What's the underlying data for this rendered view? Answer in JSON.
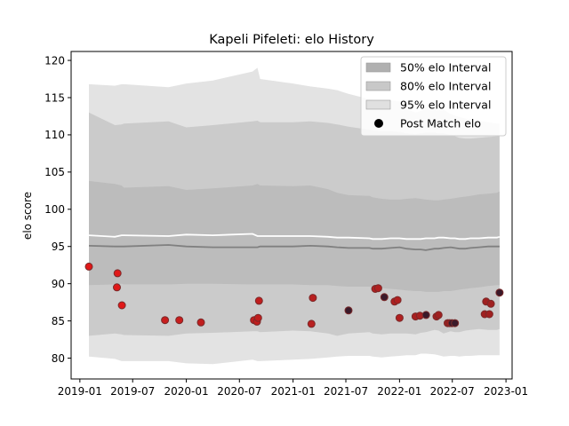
{
  "chart_data": {
    "type": "line",
    "title": "Kapeli Pifeleti: elo History",
    "xlabel": "",
    "ylabel": "elo score",
    "xlim": [
      "2018-12-02",
      "2023-01-22"
    ],
    "ylim": [
      77.2,
      121.2
    ],
    "x_ticks": [
      {
        "date": "2019-01-01",
        "label": "2019-01"
      },
      {
        "date": "2019-07-01",
        "label": "2019-07"
      },
      {
        "date": "2020-01-01",
        "label": "2020-01"
      },
      {
        "date": "2020-07-01",
        "label": "2020-07"
      },
      {
        "date": "2021-01-01",
        "label": "2021-01"
      },
      {
        "date": "2021-07-01",
        "label": "2021-07"
      },
      {
        "date": "2022-01-01",
        "label": "2022-01"
      },
      {
        "date": "2022-07-01",
        "label": "2022-07"
      },
      {
        "date": "2023-01-01",
        "label": "2023-01"
      }
    ],
    "y_ticks": [
      80,
      85,
      90,
      95,
      100,
      105,
      110,
      115,
      120
    ],
    "legend": {
      "position": "top-right",
      "entries": [
        {
          "label": "50% elo Interval",
          "color": "#b0b0b0",
          "kind": "patch"
        },
        {
          "label": "80% elo Interval",
          "color": "#c8c8c8",
          "kind": "patch"
        },
        {
          "label": "95% elo Interval",
          "color": "#e0e0e0",
          "kind": "patch"
        },
        {
          "label": "Post Match elo",
          "color": "#000000",
          "kind": "marker"
        }
      ]
    },
    "colors": {
      "band95": "#e3e3e3",
      "band80": "#cbcbcb",
      "band50": "#bcbcbc",
      "mean_line": "#ffffff",
      "median_line": "#808080",
      "marker_edge": "#7a2a2a"
    },
    "dates": [
      "2019-02-01",
      "2019-05-01",
      "2019-05-24",
      "2019-06-01",
      "2019-11-01",
      "2020-01-01",
      "2020-04-01",
      "2020-08-15",
      "2020-09-01",
      "2020-09-10",
      "2021-01-01",
      "2021-03-01",
      "2021-05-01",
      "2021-06-01",
      "2021-07-10",
      "2021-09-20",
      "2021-10-01",
      "2021-11-01",
      "2021-12-01",
      "2022-01-01",
      "2022-01-25",
      "2022-02-25",
      "2022-03-15",
      "2022-04-01",
      "2022-05-01",
      "2022-05-15",
      "2022-06-01",
      "2022-06-25",
      "2022-07-10",
      "2022-07-25",
      "2022-08-15",
      "2022-09-01",
      "2022-10-01",
      "2022-11-01",
      "2022-12-01",
      "2022-12-10"
    ],
    "series": [
      {
        "key": "upper95",
        "values": [
          116.8,
          116.6,
          116.8,
          116.8,
          116.4,
          116.9,
          117.3,
          118.5,
          119.0,
          117.5,
          116.9,
          116.5,
          116.2,
          116.0,
          115.5,
          114.8,
          114.7,
          114.5,
          114.6,
          114.5,
          113.5,
          113.0,
          113.2,
          113.7,
          113.5,
          113.3,
          113.4,
          112.8,
          112.6,
          112.4,
          112.2,
          112.1,
          111.9,
          111.7,
          111.5,
          111.5
        ]
      },
      {
        "key": "upper80",
        "values": [
          113.0,
          111.3,
          111.4,
          111.5,
          111.8,
          111.0,
          111.3,
          111.8,
          111.9,
          111.7,
          111.7,
          111.8,
          111.6,
          111.4,
          111.1,
          110.7,
          110.6,
          110.5,
          110.5,
          110.4,
          110.2,
          110.1,
          110.2,
          110.3,
          110.3,
          110.2,
          110.2,
          110.0,
          109.8,
          109.6,
          109.5,
          109.5,
          109.6,
          109.7,
          109.8,
          109.9
        ]
      },
      {
        "key": "upper50",
        "values": [
          103.8,
          103.4,
          103.2,
          102.9,
          103.1,
          102.6,
          102.8,
          103.2,
          103.4,
          103.2,
          103.1,
          103.2,
          102.7,
          102.2,
          101.9,
          101.8,
          101.6,
          101.4,
          101.3,
          101.3,
          101.4,
          101.5,
          101.4,
          101.3,
          101.2,
          101.2,
          101.3,
          101.4,
          101.5,
          101.6,
          101.7,
          101.8,
          102.0,
          102.1,
          102.2,
          102.4
        ]
      },
      {
        "key": "mean",
        "values": [
          96.5,
          96.3,
          96.5,
          96.5,
          96.4,
          96.6,
          96.5,
          96.7,
          96.4,
          96.4,
          96.4,
          96.4,
          96.3,
          96.2,
          96.2,
          96.1,
          96.0,
          96.0,
          96.1,
          96.1,
          96.0,
          96.0,
          96.0,
          96.1,
          96.1,
          96.2,
          96.2,
          96.1,
          96.1,
          96.0,
          96.0,
          96.1,
          96.1,
          96.2,
          96.2,
          96.3
        ]
      },
      {
        "key": "median",
        "values": [
          95.1,
          95.0,
          95.0,
          95.0,
          95.2,
          95.0,
          94.9,
          94.9,
          94.9,
          95.0,
          95.0,
          95.1,
          95.0,
          94.9,
          94.8,
          94.8,
          94.7,
          94.7,
          94.8,
          94.9,
          94.7,
          94.6,
          94.6,
          94.5,
          94.7,
          94.7,
          94.8,
          94.9,
          94.8,
          94.7,
          94.7,
          94.8,
          94.9,
          95.0,
          95.0,
          95.0
        ]
      },
      {
        "key": "lower50",
        "values": [
          89.8,
          89.9,
          90.0,
          89.9,
          89.9,
          90.0,
          90.0,
          89.9,
          89.9,
          89.9,
          89.9,
          89.8,
          89.8,
          89.7,
          89.6,
          89.6,
          89.5,
          89.4,
          89.3,
          89.2,
          89.1,
          89.0,
          89.0,
          88.9,
          88.9,
          88.9,
          89.0,
          89.0,
          89.1,
          89.2,
          89.3,
          89.4,
          89.5,
          89.7,
          89.8,
          89.8
        ]
      },
      {
        "key": "lower80",
        "values": [
          83.0,
          83.3,
          83.2,
          83.1,
          83.0,
          83.3,
          83.4,
          83.6,
          83.6,
          83.5,
          83.7,
          83.6,
          83.3,
          83.0,
          83.3,
          83.5,
          83.3,
          83.2,
          83.3,
          83.3,
          83.3,
          83.2,
          83.4,
          83.5,
          83.8,
          83.7,
          83.3,
          83.6,
          83.5,
          83.5,
          83.7,
          83.8,
          83.9,
          83.8,
          83.8,
          83.9
        ]
      },
      {
        "key": "lower95",
        "values": [
          80.2,
          79.9,
          79.6,
          79.6,
          79.6,
          79.3,
          79.2,
          79.8,
          79.6,
          79.6,
          79.8,
          79.9,
          80.1,
          80.2,
          80.3,
          80.3,
          80.2,
          80.1,
          80.2,
          80.3,
          80.4,
          80.4,
          80.6,
          80.6,
          80.5,
          80.4,
          80.2,
          80.3,
          80.3,
          80.2,
          80.3,
          80.3,
          80.4,
          80.4,
          80.4,
          80.4
        ]
      }
    ],
    "points": [
      {
        "date": "2019-02-01",
        "elo": 92.3,
        "color": "#e01818"
      },
      {
        "date": "2019-05-08",
        "elo": 89.5,
        "color": "#e01818"
      },
      {
        "date": "2019-05-10",
        "elo": 91.4,
        "color": "#e01818"
      },
      {
        "date": "2019-05-25",
        "elo": 87.1,
        "color": "#e01818"
      },
      {
        "date": "2019-10-20",
        "elo": 85.1,
        "color": "#c81e1e"
      },
      {
        "date": "2019-12-08",
        "elo": 85.1,
        "color": "#c81e1e"
      },
      {
        "date": "2020-02-20",
        "elo": 84.8,
        "color": "#c01e1e"
      },
      {
        "date": "2020-08-20",
        "elo": 85.1,
        "color": "#c01e1e"
      },
      {
        "date": "2020-08-30",
        "elo": 84.9,
        "color": "#c01e1e"
      },
      {
        "date": "2020-09-03",
        "elo": 85.4,
        "color": "#c01e1e"
      },
      {
        "date": "2020-09-06",
        "elo": 87.7,
        "color": "#c01e1e"
      },
      {
        "date": "2021-03-05",
        "elo": 84.6,
        "color": "#b82020"
      },
      {
        "date": "2021-03-10",
        "elo": 88.1,
        "color": "#b82020"
      },
      {
        "date": "2021-07-10",
        "elo": 86.4,
        "color": "#3a1a2a"
      },
      {
        "date": "2021-10-10",
        "elo": 89.3,
        "color": "#b02020"
      },
      {
        "date": "2021-10-20",
        "elo": 89.4,
        "color": "#b02020"
      },
      {
        "date": "2021-11-10",
        "elo": 88.2,
        "color": "#3a1a2a"
      },
      {
        "date": "2021-12-15",
        "elo": 87.6,
        "color": "#b02020"
      },
      {
        "date": "2021-12-25",
        "elo": 87.8,
        "color": "#b02020"
      },
      {
        "date": "2022-01-01",
        "elo": 85.4,
        "color": "#b02020"
      },
      {
        "date": "2022-02-25",
        "elo": 85.6,
        "color": "#a82020"
      },
      {
        "date": "2022-03-12",
        "elo": 85.7,
        "color": "#a82020"
      },
      {
        "date": "2022-04-02",
        "elo": 85.8,
        "color": "#3a1a2a"
      },
      {
        "date": "2022-05-08",
        "elo": 85.6,
        "color": "#a02020"
      },
      {
        "date": "2022-05-15",
        "elo": 85.8,
        "color": "#a02020"
      },
      {
        "date": "2022-06-15",
        "elo": 84.7,
        "color": "#a02020"
      },
      {
        "date": "2022-06-22",
        "elo": 84.7,
        "color": "#a02020"
      },
      {
        "date": "2022-06-30",
        "elo": 84.7,
        "color": "#3a1a2a"
      },
      {
        "date": "2022-07-10",
        "elo": 84.7,
        "color": "#3a1a2a"
      },
      {
        "date": "2022-10-20",
        "elo": 85.9,
        "color": "#a02020"
      },
      {
        "date": "2022-10-25",
        "elo": 87.6,
        "color": "#a02020"
      },
      {
        "date": "2022-11-05",
        "elo": 85.9,
        "color": "#a02020"
      },
      {
        "date": "2022-11-10",
        "elo": 87.3,
        "color": "#a02020"
      },
      {
        "date": "2022-12-10",
        "elo": 88.8,
        "color": "#3a1a2a"
      }
    ]
  }
}
